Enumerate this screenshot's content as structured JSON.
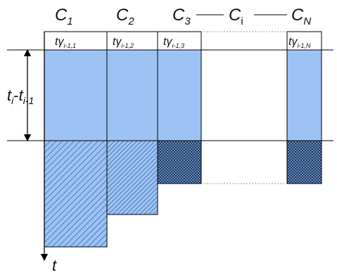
{
  "columns": [
    {
      "label_main": "C",
      "label_sub": "1",
      "label_italic": true,
      "header_t": "t",
      "header_gamma": "γ",
      "header_sub": "i-1,1"
    },
    {
      "label_main": "C",
      "label_sub": "2",
      "label_italic": true,
      "header_t": "t",
      "header_gamma": "γ",
      "header_sub": "i-1,2"
    },
    {
      "label_main": "C",
      "label_sub": "3",
      "label_italic": true,
      "header_t": "t",
      "header_gamma": "γ",
      "header_sub": "i-1,3"
    },
    {
      "label_main": "C",
      "label_sub": "i",
      "label_italic": false,
      "header_t": "",
      "header_gamma": "",
      "header_sub": ""
    },
    {
      "label_main": "C",
      "label_sub": "N",
      "label_italic": true,
      "header_t": "t",
      "header_gamma": "γ",
      "header_sub": "i-1,N"
    }
  ],
  "interval_label": {
    "t1": "t",
    "sub1": "i",
    "dash": "-",
    "t2": "t",
    "sub2": "i-1"
  },
  "time_axis_label": "t",
  "colors": {
    "fill_blue": "#9dc3f5",
    "hatch_light": "#2b5a96",
    "hatch_dark": "#1a355c",
    "line": "#000000",
    "dotted": "#999999"
  }
}
